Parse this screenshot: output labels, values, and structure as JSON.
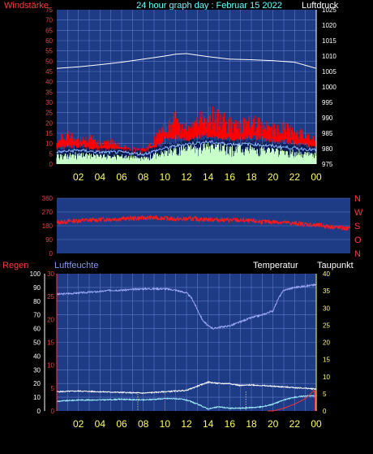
{
  "header": {
    "left_label": "Windstärke",
    "title": "24 hour graph day : Februar 15 2022",
    "right_label": "Luftdruck"
  },
  "footer_labels": {
    "regen": "Regen",
    "luftfeuchte": "Luftfeuchte",
    "temperatur": "Temperatur",
    "taupunkt": "Taupunkt"
  },
  "colors": {
    "panel_bg": "#1e3b86",
    "grid": "#5d78c8",
    "wind_gust": "#ff0000",
    "wind_avg": "#c8ffc8",
    "wind_dark": "#0b1c54",
    "pressure": "#ffffff",
    "direction": "#ff1a1a",
    "humidity": "#9aa8f5",
    "temperature": "#ffffff",
    "dewpoint": "#9ff0ff",
    "rain": "#ff3030",
    "axis_red": "#ff3b3b",
    "axis_white": "#ffffff",
    "axis_yellow": "#ffff66",
    "title_cyan": "#66ffff"
  },
  "chart_data": [
    {
      "id": "wind-pressure",
      "type": "line",
      "title": "24 hour graph day : Februar 15 2022",
      "x_ticks": [
        "02",
        "04",
        "06",
        "08",
        "10",
        "12",
        "14",
        "16",
        "18",
        "20",
        "22",
        "00"
      ],
      "xlim": [
        0,
        24
      ],
      "y_left": {
        "label": "Windstärke",
        "ticks": [
          "75",
          "70",
          "65",
          "60",
          "55",
          "50",
          "45",
          "40",
          "35",
          "30",
          "25",
          "20",
          "15",
          "10",
          "5",
          "0"
        ],
        "lim": [
          0,
          75
        ]
      },
      "y_right": {
        "label": "Luftdruck",
        "ticks": [
          "1025",
          "1020",
          "1015",
          "1010",
          "1005",
          "1000",
          "995",
          "990",
          "985",
          "980",
          "975"
        ],
        "lim": [
          975,
          1025
        ]
      },
      "series": [
        {
          "name": "pressure",
          "axis": "right",
          "x": [
            0,
            2,
            4,
            6,
            8,
            10,
            11,
            12,
            13,
            14,
            16,
            18,
            20,
            22,
            23.5,
            24
          ],
          "y": [
            1006,
            1006.5,
            1007.2,
            1008,
            1009,
            1010,
            1010.6,
            1010.8,
            1010.3,
            1009.8,
            1009,
            1008.8,
            1008.5,
            1008,
            1006.5,
            1006
          ]
        },
        {
          "name": "gust_envelope",
          "axis": "left",
          "x": [
            0,
            1,
            2,
            3,
            4,
            5,
            6,
            7,
            8,
            9,
            10,
            11,
            12,
            13,
            14,
            15,
            16,
            17,
            18,
            19,
            20,
            21,
            22,
            23,
            24
          ],
          "y": [
            13,
            17,
            14,
            16,
            11,
            13,
            10,
            9,
            8,
            14,
            22,
            26,
            20,
            24,
            30,
            27,
            23,
            22,
            25,
            22,
            20,
            21,
            18,
            17,
            13
          ]
        },
        {
          "name": "gust_baseline",
          "axis": "left",
          "x": [
            0,
            1,
            2,
            3,
            4,
            5,
            6,
            7,
            8,
            9,
            10,
            11,
            12,
            13,
            14,
            15,
            16,
            17,
            18,
            19,
            20,
            21,
            22,
            23,
            24
          ],
          "y": [
            9,
            11,
            10,
            10,
            8,
            9,
            7,
            6,
            6,
            9,
            14,
            15,
            13,
            15,
            16,
            15,
            14,
            14,
            15,
            14,
            13,
            13,
            12,
            11,
            10
          ]
        },
        {
          "name": "wind_avg",
          "axis": "left",
          "x": [
            0,
            2,
            4,
            6,
            8,
            10,
            12,
            14,
            16,
            18,
            20,
            22,
            24
          ],
          "y": [
            4,
            5,
            4,
            4,
            3,
            6,
            8,
            9,
            8,
            8,
            7,
            6,
            5
          ]
        }
      ],
      "grid": true
    },
    {
      "id": "wind-direction",
      "type": "line",
      "y_left": {
        "ticks": [
          "360",
          "270",
          "180",
          "90",
          "0"
        ],
        "lim": [
          0,
          360
        ]
      },
      "y_right": {
        "ticks": [
          "N",
          "W",
          "S",
          "O",
          "N"
        ]
      },
      "xlim": [
        0,
        24
      ],
      "series": [
        {
          "name": "direction",
          "x": [
            0,
            1,
            2,
            3,
            4,
            5,
            6,
            7,
            8,
            9,
            10,
            11,
            12,
            13,
            14,
            15,
            16,
            17,
            18,
            19,
            20,
            21,
            22,
            23,
            24
          ],
          "y": [
            200,
            210,
            215,
            218,
            222,
            225,
            228,
            230,
            232,
            228,
            222,
            225,
            222,
            220,
            218,
            215,
            210,
            205,
            205,
            198,
            192,
            185,
            178,
            168,
            160
          ]
        }
      ],
      "grid": true
    },
    {
      "id": "temp-humidity-rain",
      "type": "line",
      "x_ticks": [
        "02",
        "04",
        "06",
        "08",
        "10",
        "12",
        "14",
        "16",
        "18",
        "20",
        "22",
        "00"
      ],
      "xlim": [
        0,
        24
      ],
      "y_left_outer": {
        "label": "Regen",
        "ticks": [
          "100",
          "90",
          "80",
          "70",
          "60",
          "50",
          "40",
          "30",
          "20",
          "10",
          "0"
        ],
        "lim": [
          0,
          100
        ]
      },
      "y_left_inner": {
        "label": "Luftfeuchte",
        "ticks": [
          "30",
          "25",
          "20",
          "15",
          "10",
          "5",
          "0"
        ],
        "lim": [
          0,
          30
        ]
      },
      "y_right": {
        "label": "Taupunkt",
        "ticks": [
          "40",
          "35",
          "30",
          "25",
          "20",
          "15",
          "10",
          "5",
          "0"
        ],
        "lim": [
          0,
          40
        ]
      },
      "series": [
        {
          "name": "humidity",
          "axis": "left_outer",
          "x": [
            0,
            2,
            4,
            5,
            6,
            8,
            10,
            11,
            12,
            12.5,
            13,
            13.5,
            14,
            14.5,
            15,
            16,
            17,
            18,
            19,
            20,
            20.5,
            21,
            22,
            23,
            24
          ],
          "y": [
            85,
            86,
            87,
            88,
            88,
            89,
            89,
            88,
            86,
            82,
            74,
            66,
            62,
            60,
            61,
            62,
            65,
            68,
            70,
            73,
            82,
            88,
            90,
            91,
            92
          ]
        },
        {
          "name": "temperature",
          "axis": "left_outer",
          "x": [
            0,
            2,
            4,
            6,
            8,
            10,
            11,
            12,
            13,
            14,
            15,
            16,
            17,
            18,
            19,
            20,
            21,
            22,
            23,
            24
          ],
          "y": [
            14,
            14.5,
            14,
            13.5,
            13,
            14,
            14.5,
            15,
            18,
            21,
            20,
            20,
            18.5,
            19,
            18.5,
            18,
            17.5,
            17,
            16.5,
            16
          ]
        },
        {
          "name": "dewpoint",
          "axis": "left_outer",
          "x": [
            0,
            2,
            4,
            6,
            8,
            10,
            11,
            12,
            13,
            14,
            15,
            16,
            17,
            18,
            19,
            20,
            21,
            22,
            23,
            24
          ],
          "y": [
            7,
            8,
            8,
            8.5,
            8,
            9,
            9,
            8,
            5,
            1.5,
            3,
            2,
            2,
            2.5,
            3,
            5,
            8,
            10,
            11,
            11
          ]
        },
        {
          "name": "rain",
          "axis": "left_outer",
          "x": [
            0,
            20,
            21,
            22,
            23,
            23.8,
            24
          ],
          "y": [
            0,
            0,
            2,
            5,
            9,
            15,
            0
          ]
        }
      ],
      "grid": true
    }
  ]
}
